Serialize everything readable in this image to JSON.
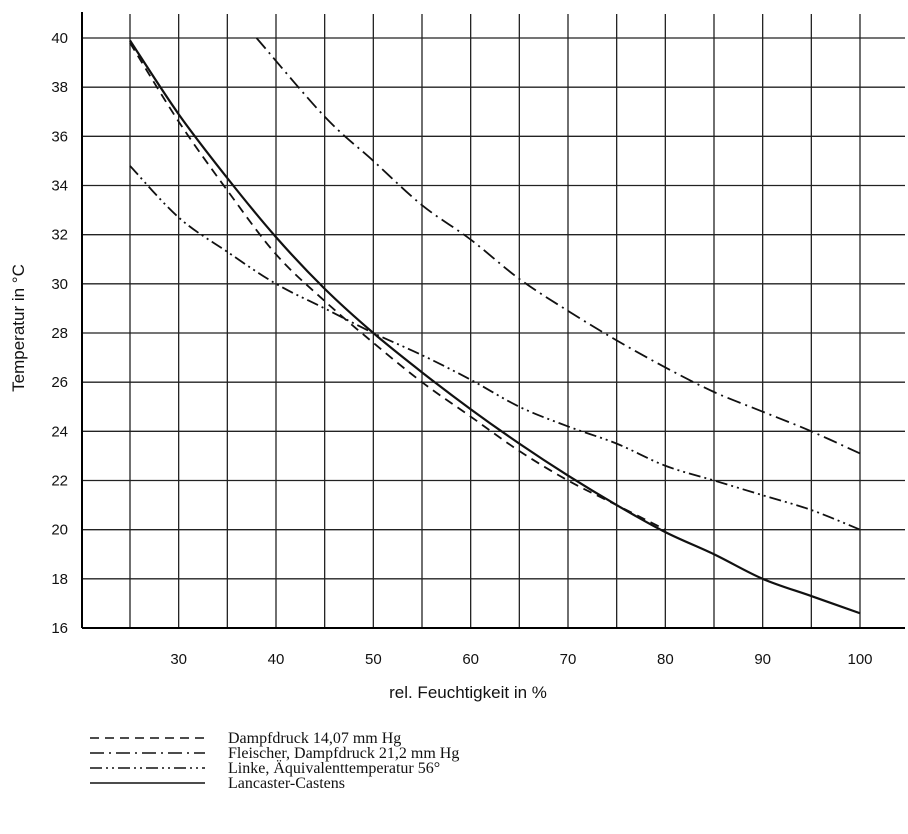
{
  "chart_data": {
    "type": "line",
    "xlabel": "rel. Feuchtigkeit in %",
    "ylabel": "Temperatur in °C",
    "xlim": [
      20,
      100
    ],
    "ylim": [
      16,
      41
    ],
    "x_ticks": [
      30,
      40,
      50,
      60,
      70,
      80,
      90,
      100
    ],
    "y_ticks": [
      16,
      18,
      20,
      22,
      24,
      26,
      28,
      30,
      32,
      34,
      36,
      38,
      40
    ],
    "grid": true,
    "legend_position": "bottom-left",
    "series": [
      {
        "name": "Dampfdruck 14,07 mm Hg",
        "style": "dashed",
        "color": "#111111",
        "x": [
          25,
          30,
          35,
          40,
          45,
          50,
          55,
          60,
          65,
          70,
          75,
          80
        ],
        "y": [
          39.8,
          36.6,
          33.8,
          31.2,
          29.3,
          27.6,
          26.0,
          24.6,
          23.2,
          22.0,
          21.0,
          20.0
        ]
      },
      {
        "name": "Fleischer, Dampfdruck 21,2 mm Hg",
        "style": "dash-dot",
        "color": "#111111",
        "x": [
          38,
          45,
          50,
          55,
          60,
          65,
          70,
          75,
          80,
          85,
          90,
          95,
          100
        ],
        "y": [
          40.0,
          36.8,
          35.0,
          33.2,
          31.8,
          30.2,
          28.9,
          27.7,
          26.6,
          25.6,
          24.8,
          24.0,
          23.1
        ]
      },
      {
        "name": "Linke, Äquivalenttemperatur 56°",
        "style": "dash-dot-dot",
        "color": "#111111",
        "x": [
          25,
          30,
          35,
          40,
          45,
          50,
          55,
          60,
          65,
          70,
          75,
          80,
          85,
          90,
          95,
          100
        ],
        "y": [
          34.8,
          32.7,
          31.3,
          30.0,
          29.0,
          28.0,
          27.1,
          26.1,
          25.0,
          24.2,
          23.5,
          22.6,
          22.0,
          21.4,
          20.8,
          20.0
        ]
      },
      {
        "name": "Lancaster-Castens",
        "style": "solid",
        "color": "#111111",
        "x": [
          25,
          30,
          35,
          40,
          45,
          50,
          55,
          60,
          65,
          70,
          75,
          80,
          85,
          90,
          95,
          100
        ],
        "y": [
          39.9,
          36.9,
          34.3,
          31.9,
          29.8,
          28.0,
          26.4,
          24.9,
          23.5,
          22.2,
          21.0,
          19.9,
          19.0,
          18.0,
          17.3,
          16.6
        ]
      }
    ]
  }
}
